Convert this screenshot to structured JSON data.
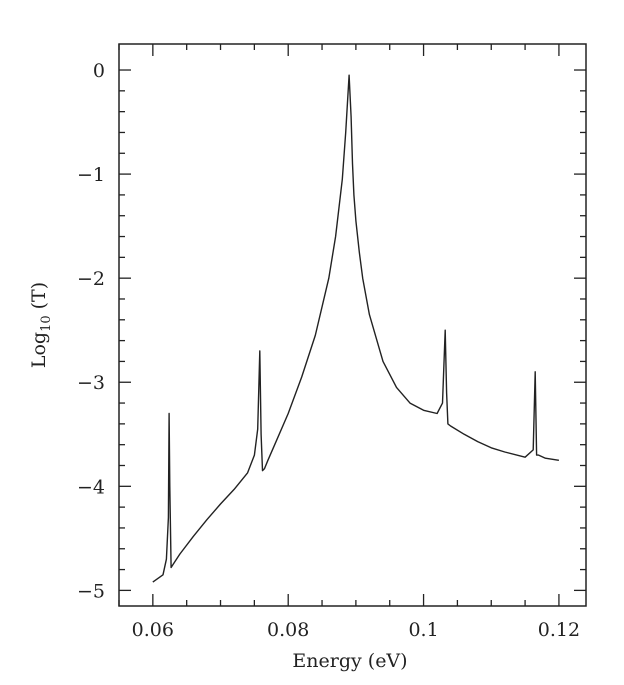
{
  "chart_data": {
    "type": "line",
    "xlabel": "Energy (eV)",
    "ylabel_main": "Log",
    "ylabel_sub": "10",
    "ylabel_tail": "(T)",
    "xlim": [
      0.055,
      0.124
    ],
    "ylim": [
      -5.15,
      0.25
    ],
    "x_ticks": [
      0.06,
      0.08,
      0.1,
      0.12
    ],
    "x_tick_labels": [
      "0.06",
      "0.08",
      "0.1",
      "0.12"
    ],
    "y_ticks": [
      0,
      -1,
      -2,
      -3,
      -4,
      -5
    ],
    "y_tick_labels": [
      "0",
      "−1",
      "−2",
      "−3",
      "−4",
      "−5"
    ],
    "grid": false,
    "legend": "none",
    "series": [
      {
        "values_desc": "",
        "x": [
          0.06,
          0.0615,
          0.062,
          0.0623,
          0.0624,
          0.0625,
          0.0627,
          0.063,
          0.064,
          0.066,
          0.068,
          0.07,
          0.072,
          0.074,
          0.075,
          0.0755,
          0.0758,
          0.076,
          0.0762,
          0.0765,
          0.077,
          0.078,
          0.08,
          0.082,
          0.084,
          0.086,
          0.087,
          0.088,
          0.0885,
          0.089,
          0.0893,
          0.0895,
          0.0897,
          0.09,
          0.0905,
          0.091,
          0.092,
          0.094,
          0.096,
          0.098,
          0.1,
          0.102,
          0.1028,
          0.1032,
          0.1034,
          0.1036,
          0.104,
          0.106,
          0.108,
          0.11,
          0.112,
          0.115,
          0.1162,
          0.1165,
          0.1167,
          0.117,
          0.118,
          0.12
        ],
        "y": [
          -4.92,
          -4.85,
          -4.7,
          -4.3,
          -3.3,
          -4.0,
          -4.78,
          -4.75,
          -4.65,
          -4.48,
          -4.32,
          -4.17,
          -4.03,
          -3.87,
          -3.7,
          -3.45,
          -2.7,
          -3.5,
          -3.85,
          -3.83,
          -3.75,
          -3.6,
          -3.3,
          -2.95,
          -2.55,
          -2.0,
          -1.6,
          -1.05,
          -0.6,
          -0.05,
          -0.45,
          -0.9,
          -1.2,
          -1.45,
          -1.75,
          -2.0,
          -2.35,
          -2.8,
          -3.05,
          -3.2,
          -3.27,
          -3.3,
          -3.2,
          -2.5,
          -3.1,
          -3.4,
          -3.42,
          -3.5,
          -3.57,
          -3.63,
          -3.67,
          -3.72,
          -3.65,
          -2.9,
          -3.7,
          -3.7,
          -3.73,
          -3.75
        ]
      }
    ]
  }
}
